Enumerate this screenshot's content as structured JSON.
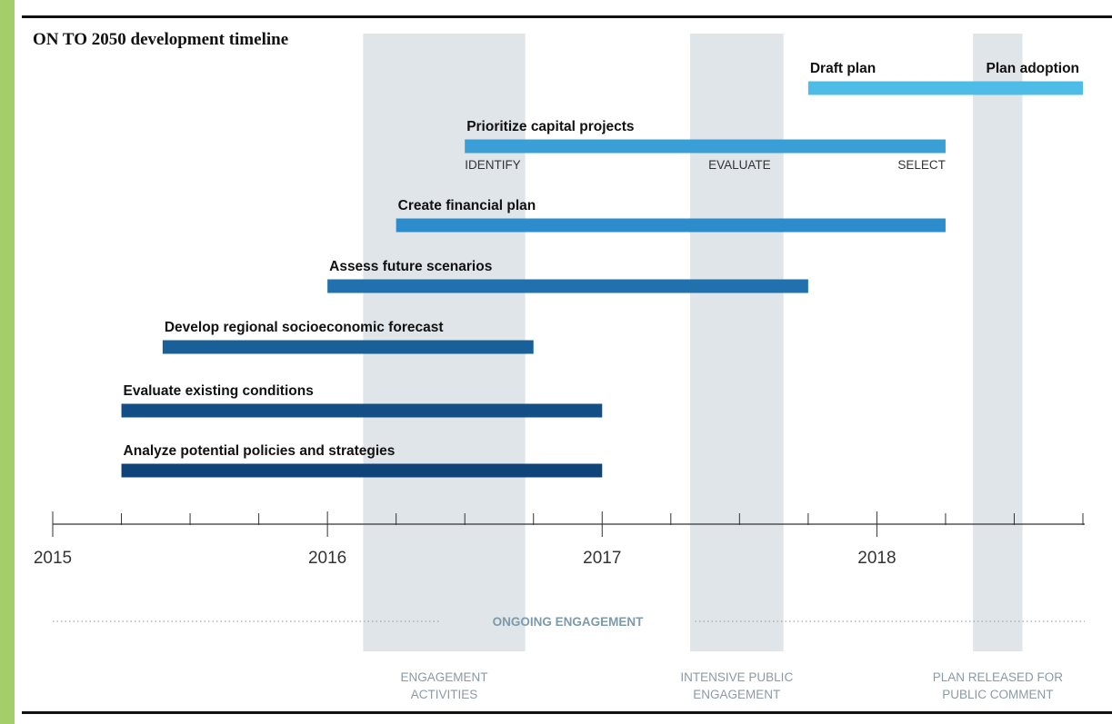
{
  "chart_data": {
    "type": "gantt",
    "title": "ON TO 2050 development timeline",
    "x_range": [
      2015,
      2018.75
    ],
    "x_ticks": [
      2015,
      2016,
      2017,
      2018
    ],
    "minor_tick_step": 0.25,
    "tasks": [
      {
        "label": "Draft plan",
        "start": 2017.75,
        "end": 2018.75,
        "color": "#4dbde8",
        "extra_label": "Plan adoption"
      },
      {
        "label": "Prioritize capital projects",
        "start": 2016.5,
        "end": 2018.25,
        "color": "#3a9fd6",
        "sublabels": [
          {
            "text": "IDENTIFY",
            "at": 2016.5
          },
          {
            "text": "EVALUATE",
            "at": 2017.5
          },
          {
            "text": "SELECT",
            "at": 2018.25
          }
        ]
      },
      {
        "label": "Create financial plan",
        "start": 2016.25,
        "end": 2018.25,
        "color": "#2d8ccb"
      },
      {
        "label": "Assess future scenarios",
        "start": 2016.0,
        "end": 2017.75,
        "color": "#2271af"
      },
      {
        "label": "Develop regional socioeconomic forecast",
        "start": 2015.4,
        "end": 2016.75,
        "color": "#195f98"
      },
      {
        "label": "Evaluate existing conditions",
        "start": 2015.25,
        "end": 2017.0,
        "color": "#134f85"
      },
      {
        "label": "Analyze potential policies and strategies",
        "start": 2015.25,
        "end": 2017.0,
        "color": "#0f4478"
      }
    ],
    "engagement_periods": [
      {
        "label": [
          "ENGAGEMENT",
          "ACTIVITIES"
        ],
        "start": 2016.13,
        "end": 2016.72
      },
      {
        "label": [
          "INTENSIVE PUBLIC",
          "ENGAGEMENT"
        ],
        "start": 2017.32,
        "end": 2017.66
      },
      {
        "label": [
          "PLAN RELEASED FOR",
          "PUBLIC COMMENT"
        ],
        "start": 2018.35,
        "end": 2018.53
      }
    ],
    "ongoing_label": "ONGOING ENGAGEMENT",
    "colors": {
      "shading": "#dfe5e9",
      "axis": "#333333",
      "period_text": "#8b9aa4",
      "ongoing_text": "#7d9aaa"
    }
  }
}
